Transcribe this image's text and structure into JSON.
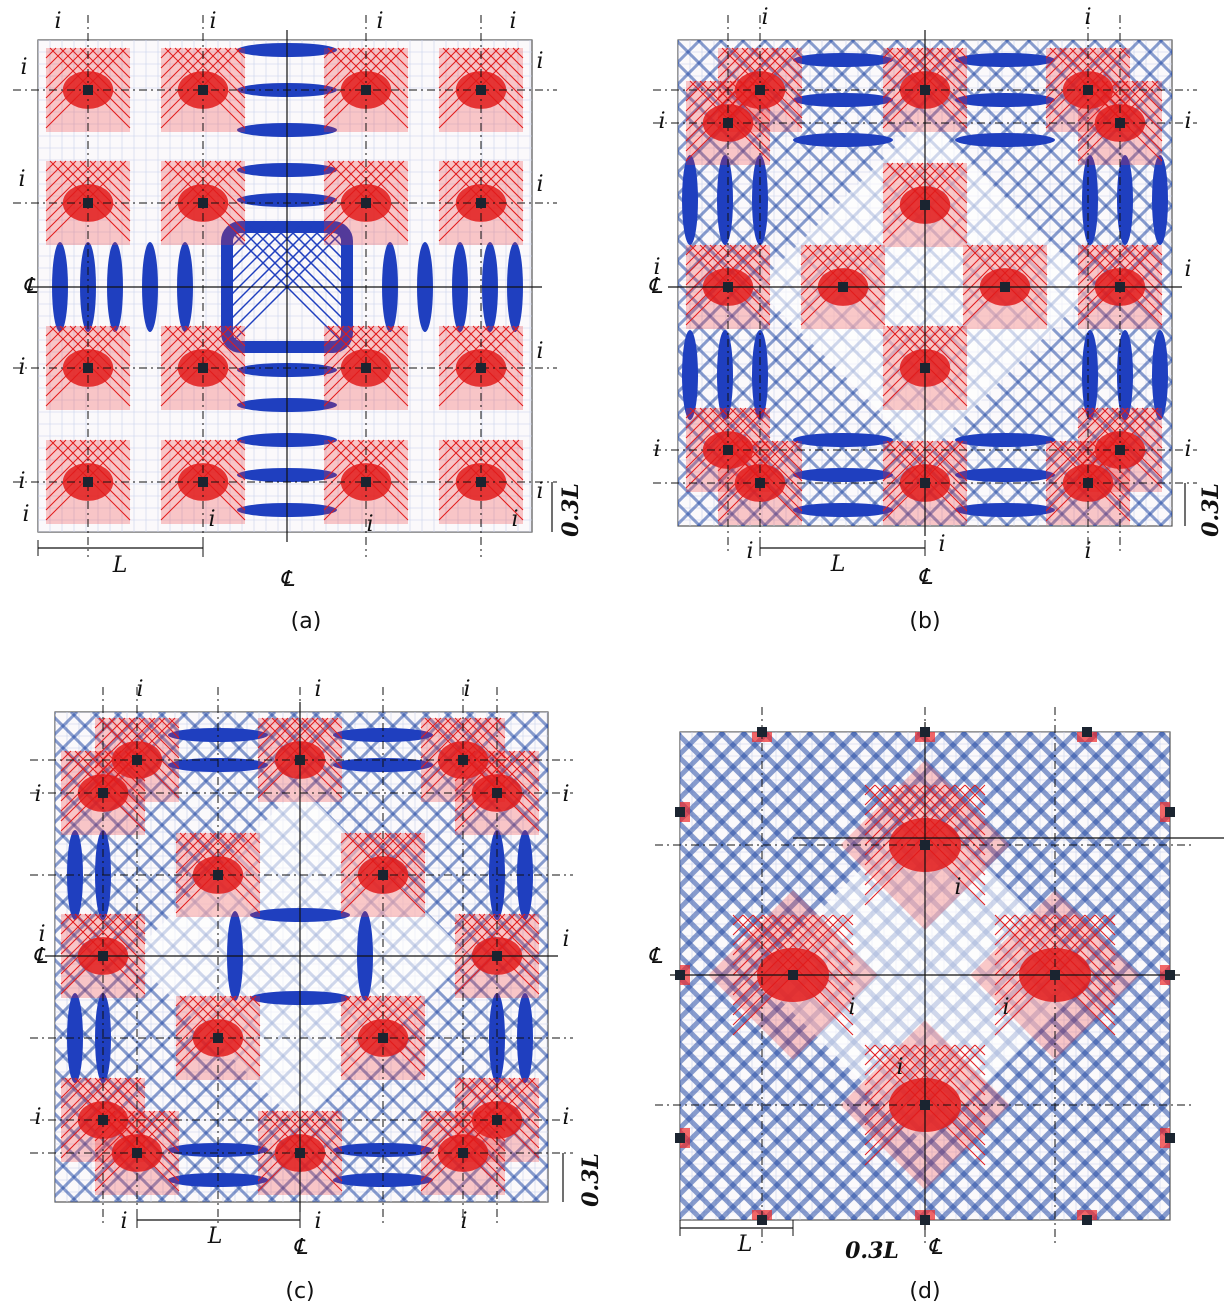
{
  "panels": [
    {
      "caption": "(a)",
      "i_labels": [
        "i",
        "i",
        "i",
        "i",
        "i",
        "i",
        "i",
        "i",
        "i",
        "i",
        "i",
        "i",
        "i",
        "i",
        "i",
        "i"
      ],
      "length_label": "L",
      "offset_label": "0.3L",
      "centerline_labels": [
        "℄",
        "℄"
      ]
    },
    {
      "caption": "(b)",
      "i_labels": [
        "i",
        "i",
        "i",
        "i",
        "i",
        "i",
        "i",
        "i",
        "i",
        "i",
        "i"
      ],
      "length_label": "L",
      "offset_label": "0.3L",
      "centerline_labels": [
        "℄",
        "℄"
      ]
    },
    {
      "caption": "(c)",
      "i_labels": [
        "i",
        "i",
        "i",
        "i",
        "i",
        "i",
        "i",
        "i",
        "i",
        "i",
        "i",
        "i"
      ],
      "length_label": "L",
      "offset_label": "0.3L",
      "centerline_labels": [
        "℄",
        "℄"
      ]
    },
    {
      "caption": "(d)",
      "i_labels": [
        "i",
        "i",
        "i",
        "i"
      ],
      "length_label": "L",
      "offset_label": "0.3L",
      "centerline_labels": [
        "℄",
        "℄"
      ]
    }
  ]
}
